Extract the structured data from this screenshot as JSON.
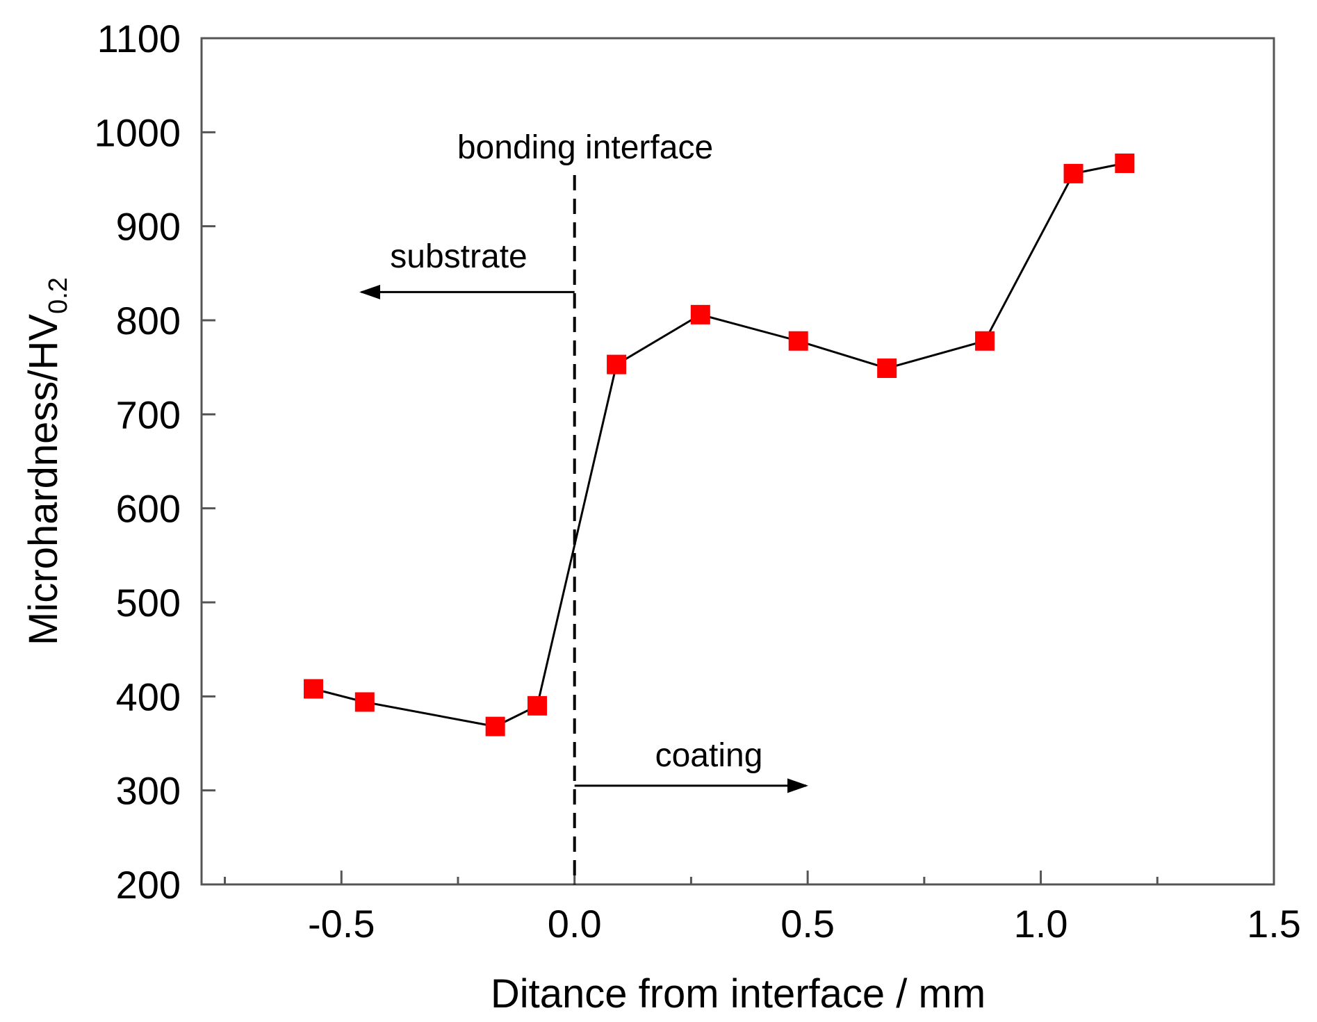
{
  "chart_data": {
    "type": "line",
    "title": "",
    "xlabel": "Ditance from interface / mm",
    "ylabel": "Microhardness/HV",
    "ylabel_subscript": "0.2",
    "xlim": [
      -0.8,
      1.5
    ],
    "ylim": [
      200,
      1100
    ],
    "x_ticks": [
      "-0.5",
      "0.0",
      "0.5",
      "1.0",
      "1.5"
    ],
    "y_ticks": [
      "200",
      "300",
      "400",
      "500",
      "600",
      "700",
      "800",
      "900",
      "1000",
      "1100"
    ],
    "series": [
      {
        "name": "Microhardness",
        "marker": "square",
        "color": "#ff0000",
        "line_color": "#000000",
        "x": [
          -0.56,
          -0.45,
          -0.17,
          -0.08,
          0.09,
          0.27,
          0.48,
          0.67,
          0.88,
          1.07,
          1.18
        ],
        "y": [
          408,
          394,
          368,
          390,
          753,
          806,
          778,
          749,
          778,
          956,
          967
        ]
      }
    ],
    "annotations": {
      "interface_label": "bonding interface",
      "substrate_label": "substrate",
      "coating_label": "coating",
      "interface_x": 0.0,
      "substrate_arrow_y": 830,
      "coating_arrow_y": 305
    },
    "grid": false,
    "legend": "none"
  }
}
